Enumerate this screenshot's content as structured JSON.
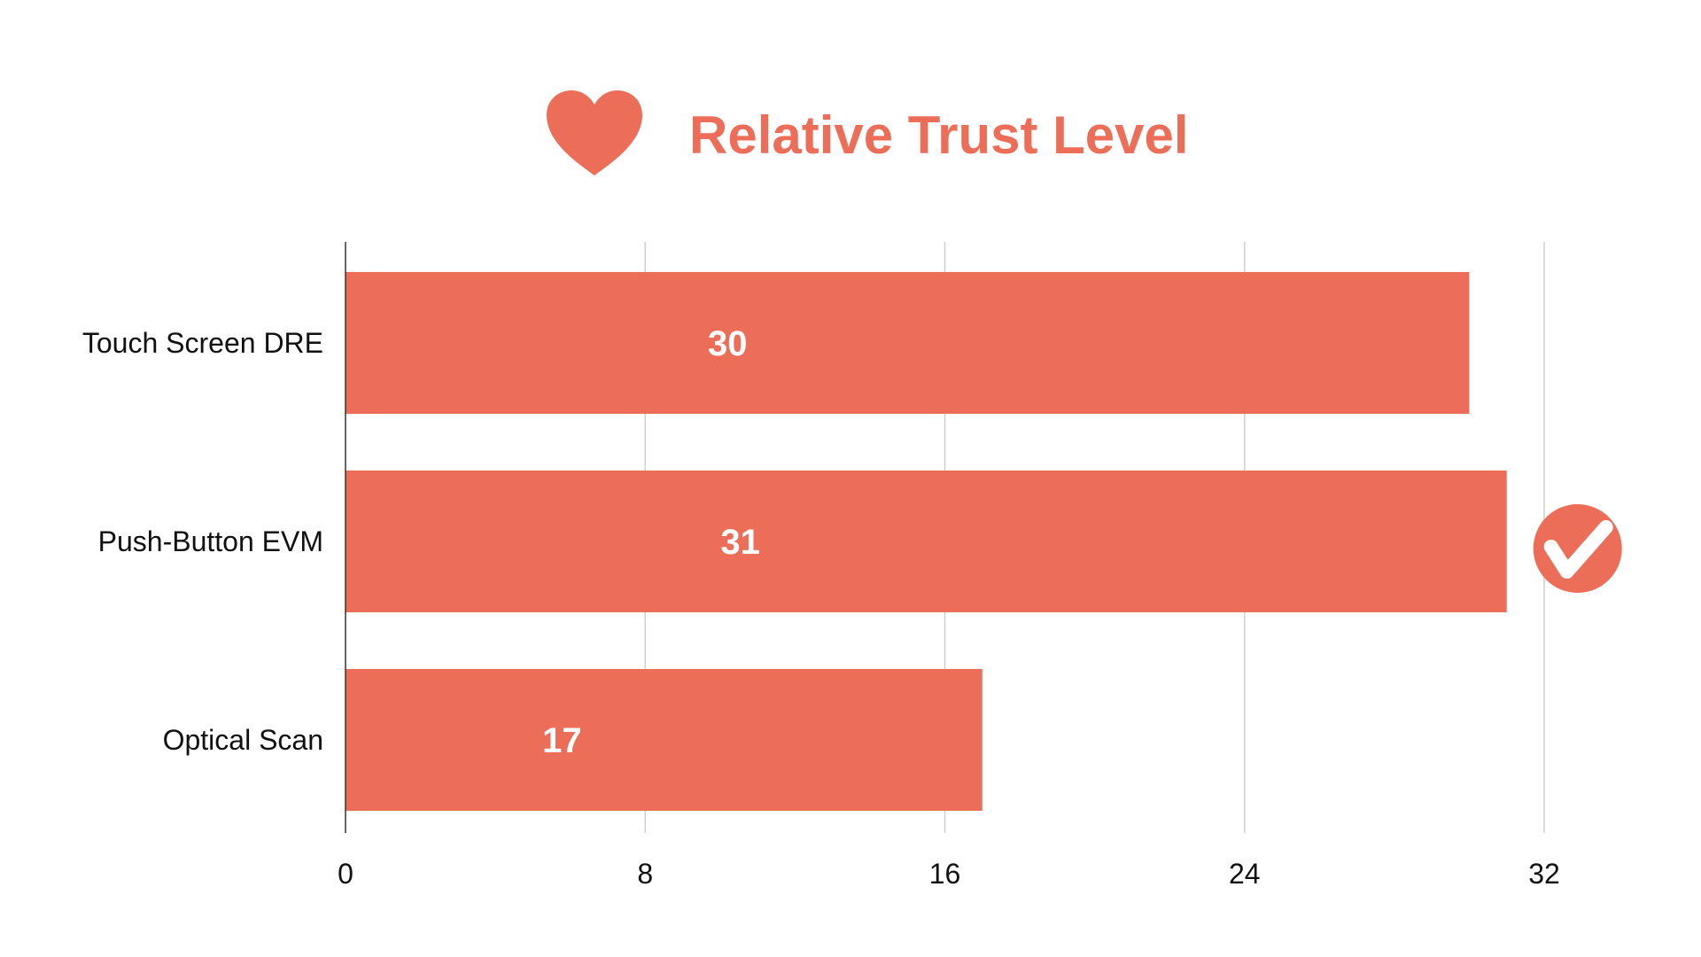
{
  "colors": {
    "accent": "#EC6E58",
    "background": "#FFFFFF",
    "grid": "#CFCFCF",
    "text": "#111111"
  },
  "icons": {
    "title_icon": "heart-icon",
    "highlight_icon": "check-circle-icon",
    "highlight_category": "Push-Button EVM"
  },
  "chart_data": {
    "type": "bar",
    "orientation": "horizontal",
    "title": "Relative Trust Level",
    "categories": [
      "Touch Screen DRE",
      "Push-Button EVM",
      "Optical Scan"
    ],
    "values": [
      30,
      31,
      17
    ],
    "data_labels": [
      "30",
      "31",
      "17"
    ],
    "xlim": [
      0,
      32
    ],
    "xticks": [
      0,
      8,
      16,
      24,
      32
    ],
    "xtick_labels": [
      "0",
      "8",
      "16",
      "24",
      "32"
    ],
    "xlabel": "",
    "ylabel": "",
    "grid": true,
    "legend": "none"
  }
}
